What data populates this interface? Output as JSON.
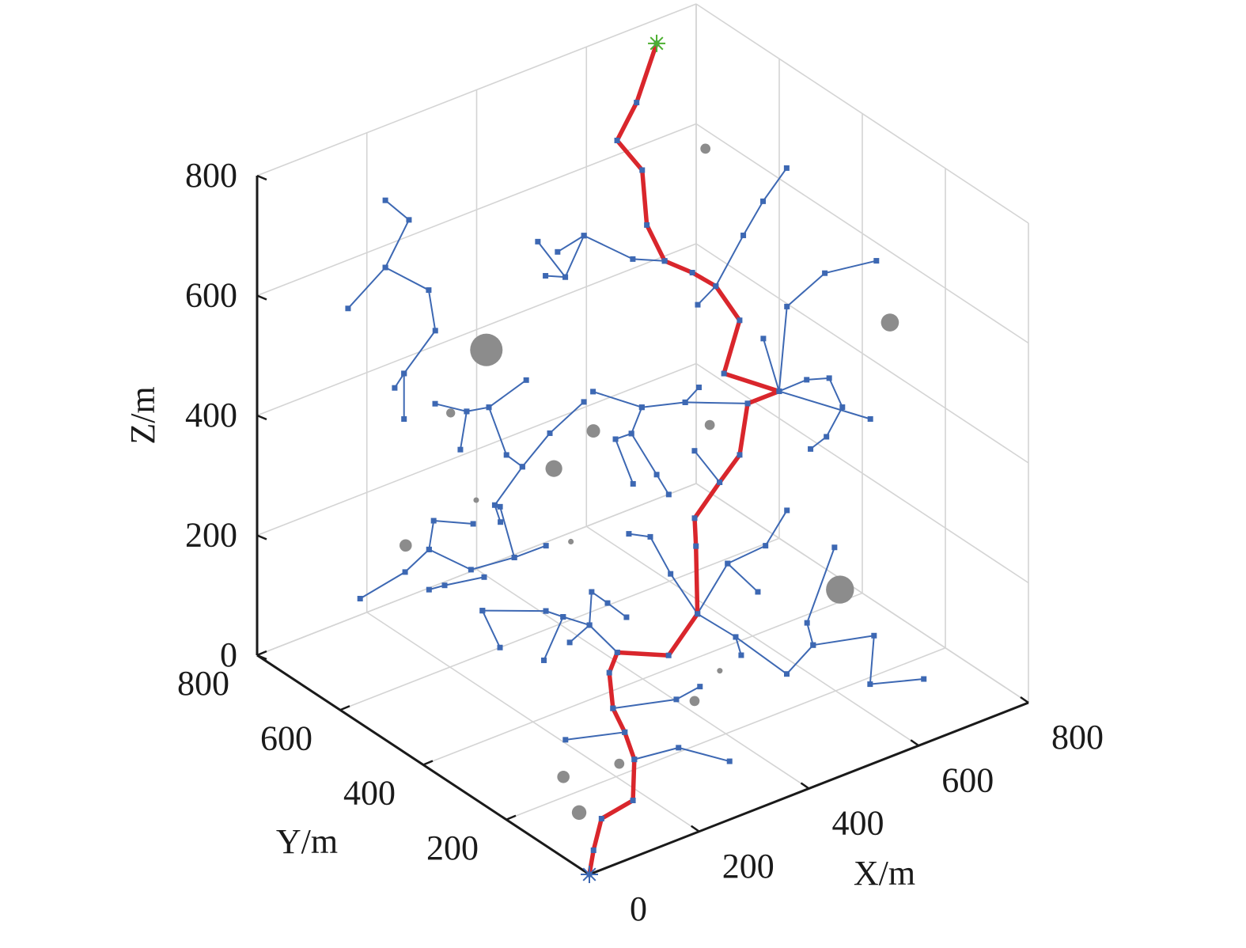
{
  "chart_data": {
    "type": "line3d",
    "xlabel": "X/m",
    "ylabel": "Y/m",
    "zlabel": "Z/m",
    "xlim": [
      0,
      800
    ],
    "ylim": [
      0,
      800
    ],
    "zlim": [
      0,
      800
    ],
    "xticks": [
      0,
      200,
      400,
      600,
      800
    ],
    "yticks": [
      0,
      200,
      400,
      600,
      800
    ],
    "zticks": [
      0,
      200,
      400,
      600,
      800
    ],
    "grid": true,
    "path": {
      "color": "#d9262c",
      "x": [
        0,
        31,
        69,
        149,
        175,
        181,
        183,
        199,
        237,
        354,
        430,
        450,
        471,
        540,
        600,
        638,
        718,
        641,
        693,
        673,
        653,
        626,
        617,
        632,
        609,
        668,
        728
      ],
      "y": [
        0,
        31,
        62,
        92,
        123,
        154,
        185,
        215,
        246,
        277,
        308,
        338,
        369,
        400,
        431,
        462,
        492,
        523,
        554,
        585,
        615,
        646,
        677,
        708,
        738,
        769,
        800
      ],
      "z": [
        0,
        15,
        40,
        28,
        73,
        102,
        127,
        167,
        173,
        112,
        140,
        232,
        257,
        278,
        288,
        346,
        324,
        367,
        423,
        473,
        489,
        504,
        553,
        625,
        669,
        697,
        760
      ]
    },
    "tree": {
      "color": "#3d68b3",
      "branches": [
        {
          "x": [
            90,
            158,
            237,
            249,
            192,
            175
          ],
          "y": [
            700,
            700,
            700,
            700,
            700,
            700
          ],
          "z": [
            592,
            636,
            570,
            498,
            447,
            429
          ]
        },
        {
          "x": [
            158,
            201,
            158
          ],
          "y": [
            700,
            700,
            700
          ],
          "z": [
            636,
            700,
            748
          ]
        },
        {
          "x": [
            192,
            192
          ],
          "y": [
            700,
            700
          ],
          "z": [
            447,
            371
          ]
        },
        {
          "x": [
            398,
            448,
            482,
            571,
            626
          ],
          "y": [
            650,
            650,
            650,
            650,
            646
          ],
          "z": [
            616,
            539,
            596,
            525,
            504
          ]
        },
        {
          "x": [
            412,
            448
          ],
          "y": [
            650,
            650
          ],
          "z": [
            554,
            539
          ]
        },
        {
          "x": [
            434,
            482
          ],
          "y": [
            650,
            650
          ],
          "z": [
            586,
            596
          ]
        },
        {
          "x": [
            673,
            621,
            657,
            700
          ],
          "y": [
            585,
            450,
            450,
            450
          ],
          "z": [
            473,
            638,
            682,
            722
          ]
        },
        {
          "x": [
            673,
            538
          ],
          "y": [
            585,
            450
          ],
          "z": [
            473,
            552
          ]
        },
        {
          "x": [
            718,
            587,
            656,
            750
          ],
          "y": [
            492,
            300,
            300,
            300
          ],
          "z": [
            324,
            600,
            631,
            618
          ]
        },
        {
          "x": [
            718,
            544
          ],
          "y": [
            492,
            300
          ],
          "z": [
            324,
            562
          ]
        },
        {
          "x": [
            718,
            623,
            664,
            688,
            659,
            630
          ],
          "y": [
            492,
            300,
            300,
            300,
            300,
            300
          ],
          "z": [
            324,
            465,
            453,
            396,
            357,
            347
          ]
        },
        {
          "x": [
            718,
            739
          ],
          "y": [
            492,
            300
          ],
          "z": [
            324,
            358
          ]
        },
        {
          "x": [
            173,
            230.5,
            219
          ],
          "y": [
            600,
            600,
            600
          ],
          "z": [
            449,
            415.6,
            356
          ]
        },
        {
          "x": [
            230.5,
            271,
            303,
            332,
            281.7,
            292
          ],
          "y": [
            600,
            600,
            600,
            600,
            600,
            600
          ],
          "z": [
            415.6,
            408,
            317,
            287,
            241,
            209
          ]
        },
        {
          "x": [
            271,
            339
          ],
          "y": [
            600,
            600
          ],
          "z": [
            408,
            429
          ]
        },
        {
          "x": [
            444,
            382,
            332
          ],
          "y": [
            600,
            600,
            600
          ],
          "z": [
            355,
            325,
            287
          ]
        },
        {
          "x": [
            385,
            474,
            553,
            638
          ],
          "y": [
            500,
            500,
            500,
            462
          ],
          "z": [
            439,
            381,
            361,
            346
          ]
        },
        {
          "x": [
            474,
            455,
            426,
            458
          ],
          "y": [
            500,
            500,
            500,
            500
          ],
          "z": [
            381,
            344,
            345,
            259
          ]
        },
        {
          "x": [
            553,
            578
          ],
          "y": [
            500,
            500
          ],
          "z": [
            361,
            377
          ]
        },
        {
          "x": [
            455,
            501,
            523
          ],
          "y": [
            500,
            500,
            500
          ],
          "z": [
            344,
            259,
            218
          ]
        },
        {
          "x": [
            570,
            540
          ],
          "y": [
            500,
            400
          ],
          "z": [
            274,
            278
          ]
        },
        {
          "x": [
            112,
            194,
            237.6,
            314,
            393,
            450.7
          ],
          "y": [
            700,
            700,
            700,
            700,
            700,
            700
          ],
          "z": [
            100,
            115,
            137,
            76,
            68,
            67
          ]
        },
        {
          "x": [
            237.6,
            246,
            318
          ],
          "y": [
            700,
            700,
            700
          ],
          "z": [
            137,
            182,
            151
          ]
        },
        {
          "x": [
            237.6,
            266,
            338
          ],
          "y": [
            700,
            700,
            700
          ],
          "z": [
            70,
            67,
            55
          ]
        },
        {
          "x": [
            393,
            367
          ],
          "y": [
            700,
            700
          ],
          "z": [
            68,
            162
          ]
        },
        {
          "x": [
            430,
            375,
            338,
            299
          ],
          "y": [
            308,
            300,
            300,
            300
          ],
          "z": [
            140,
            230,
            305,
            324
          ]
        },
        {
          "x": [
            430,
            479,
            548,
            587
          ],
          "y": [
            308,
            300,
            300,
            300
          ],
          "z": [
            140,
            210,
            215,
            260
          ]
        },
        {
          "x": [
            479,
            534
          ],
          "y": [
            300,
            300
          ],
          "z": [
            210,
            143
          ]
        },
        {
          "x": [
            430,
            418,
            428
          ],
          "y": [
            308,
            200,
            200
          ],
          "z": [
            140,
            155,
            121
          ]
        },
        {
          "x": [
            418,
            511,
            559,
            548,
            598
          ],
          "y": [
            200,
            200,
            200,
            200,
            200
          ],
          "z": [
            155,
            60,
            91,
            132,
            240
          ]
        },
        {
          "x": [
            559,
            670,
            625,
            685
          ],
          "y": [
            200,
            200,
            150,
            100
          ],
          "z": [
            91,
            67,
            25,
            35
          ]
        },
        {
          "x": [
            237,
            265,
            217,
            185.6
          ],
          "y": [
            246,
            350,
            350,
            350
          ],
          "z": [
            173,
            161,
            192,
            213
          ]
        },
        {
          "x": [
            265,
            269,
            298,
            332.5
          ],
          "y": [
            350,
            350,
            350,
            350
          ],
          "z": [
            161,
            215,
            186,
            150
          ]
        },
        {
          "x": [
            217,
            182
          ],
          "y": [
            350,
            350
          ],
          "z": [
            192,
            132
          ]
        },
        {
          "x": [
            265,
            229
          ],
          "y": [
            350,
            350
          ],
          "z": [
            161,
            145
          ]
        },
        {
          "x": [
            70,
            185.6
          ],
          "y": [
            350,
            350
          ],
          "z": [
            255,
            213
          ]
        },
        {
          "x": [
            102,
            70
          ],
          "y": [
            350,
            350
          ],
          "z": [
            182,
            255
          ]
        },
        {
          "x": [
            181,
            70
          ],
          "y": [
            154,
            150
          ],
          "z": [
            102,
            131
          ]
        },
        {
          "x": [
            175,
            276,
            316
          ],
          "y": [
            123,
            150,
            80
          ],
          "z": [
            73,
            44,
            39
          ]
        },
        {
          "x": [
            183,
            272,
            315
          ],
          "y": [
            185,
            150,
            150
          ],
          "z": [
            127,
            126,
            132
          ]
        }
      ]
    },
    "obstacles": {
      "color": "#8c8c8c",
      "x": [
        115,
        699,
        779,
        238,
        310,
        608,
        50,
        522,
        195,
        96.5,
        269,
        389,
        343,
        168,
        104,
        57
      ],
      "y": [
        400,
        200,
        750,
        400,
        400,
        200,
        400,
        400,
        700,
        400,
        400,
        200,
        200,
        150,
        200,
        100
      ],
      "z": [
        651,
        579,
        589,
        409,
        446,
        166,
        569,
        380,
        159,
        407,
        276,
        109,
        75,
        56,
        34,
        37
      ],
      "r": [
        29,
        16,
        9,
        15,
        12,
        25,
        8,
        9,
        11,
        5,
        5,
        5,
        9,
        9,
        11,
        13
      ]
    },
    "start": {
      "color": "#3d68b3",
      "x": 0,
      "y": 0,
      "z": 0
    },
    "goal": {
      "color": "#4caf30",
      "x": 728,
      "y": 800,
      "z": 760
    }
  }
}
